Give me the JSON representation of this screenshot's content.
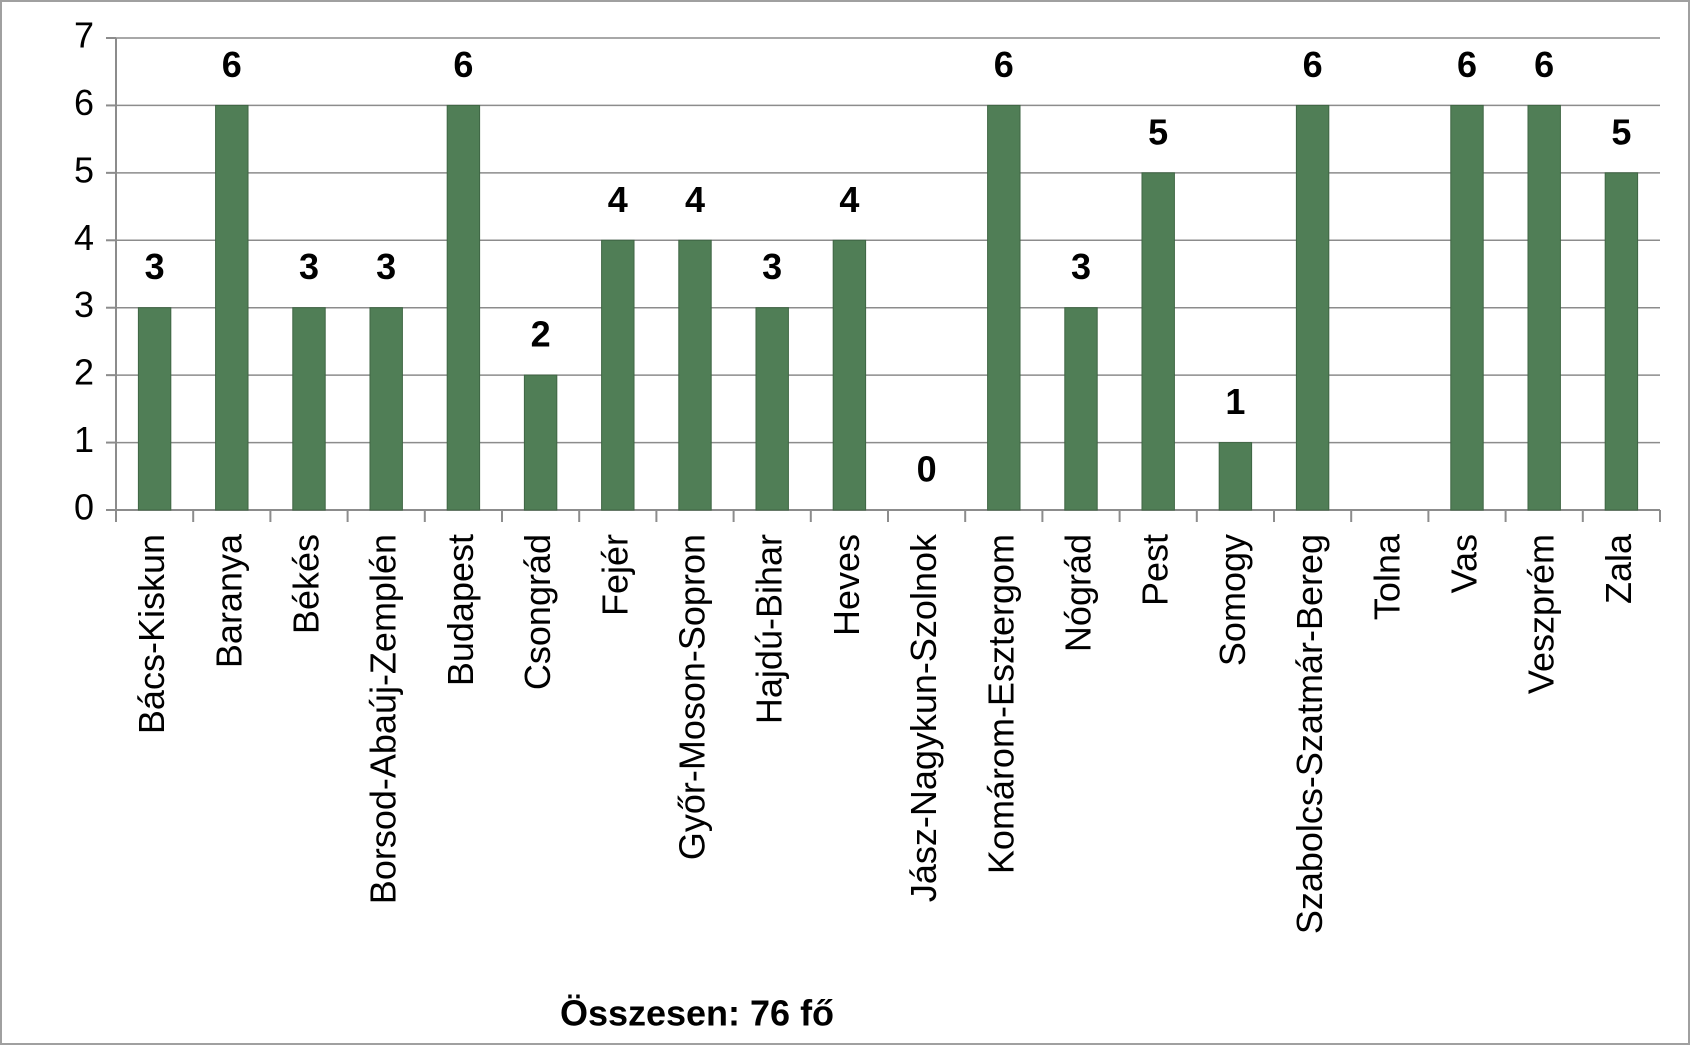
{
  "chart_data": {
    "type": "bar",
    "categories": [
      "Bács-Kiskun",
      "Baranya",
      "Békés",
      "Borsod-Abaúj-Zemplén",
      "Budapest",
      "Csongrád",
      "Fejér",
      "Győr-Moson-Sopron",
      "Hajdú-Bihar",
      "Heves",
      "Jász-Nagykun-Szolnok",
      "Komárom-Esztergom",
      "Nógrád",
      "Pest",
      "Somogy",
      "Szabolcs-Szatmár-Bereg",
      "Tolna",
      "Vas",
      "Veszprém",
      "Zala"
    ],
    "values": [
      3,
      6,
      3,
      3,
      6,
      2,
      4,
      4,
      3,
      4,
      0,
      6,
      3,
      5,
      1,
      6,
      null,
      6,
      6,
      5
    ],
    "color": "#507e56",
    "ylim": [
      0,
      7
    ],
    "yticks": [
      0,
      1,
      2,
      3,
      4,
      5,
      6,
      7
    ],
    "grid": true,
    "annotation": "Összesen: 76 fő"
  }
}
